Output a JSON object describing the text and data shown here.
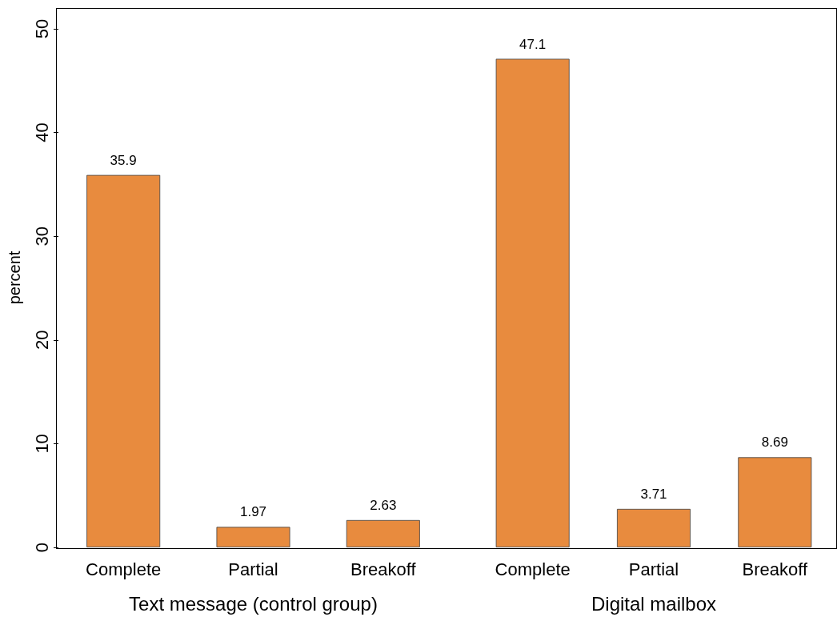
{
  "chart_data": [
    {
      "type": "bar",
      "categories": [
        "Complete",
        "Partial",
        "Breakoff"
      ],
      "values": [
        35.9,
        1.97,
        2.63
      ],
      "color": "#e88b3e",
      "xlabel": "Text message (control group)",
      "ylabel": "percent",
      "ylim": [
        0,
        52
      ],
      "yticks": [
        0,
        10,
        20,
        30,
        40,
        50
      ],
      "data_labels": true,
      "grid": false
    },
    {
      "type": "bar",
      "categories": [
        "Complete",
        "Partial",
        "Breakoff"
      ],
      "values": [
        47.1,
        3.71,
        8.69
      ],
      "color": "#e88b3e",
      "xlabel": "Digital mailbox",
      "ylim": [
        0,
        52
      ],
      "yticks": [
        0,
        10,
        20,
        30,
        40,
        50
      ],
      "data_labels": true,
      "grid": false,
      "tick_labels": "x"
    }
  ]
}
